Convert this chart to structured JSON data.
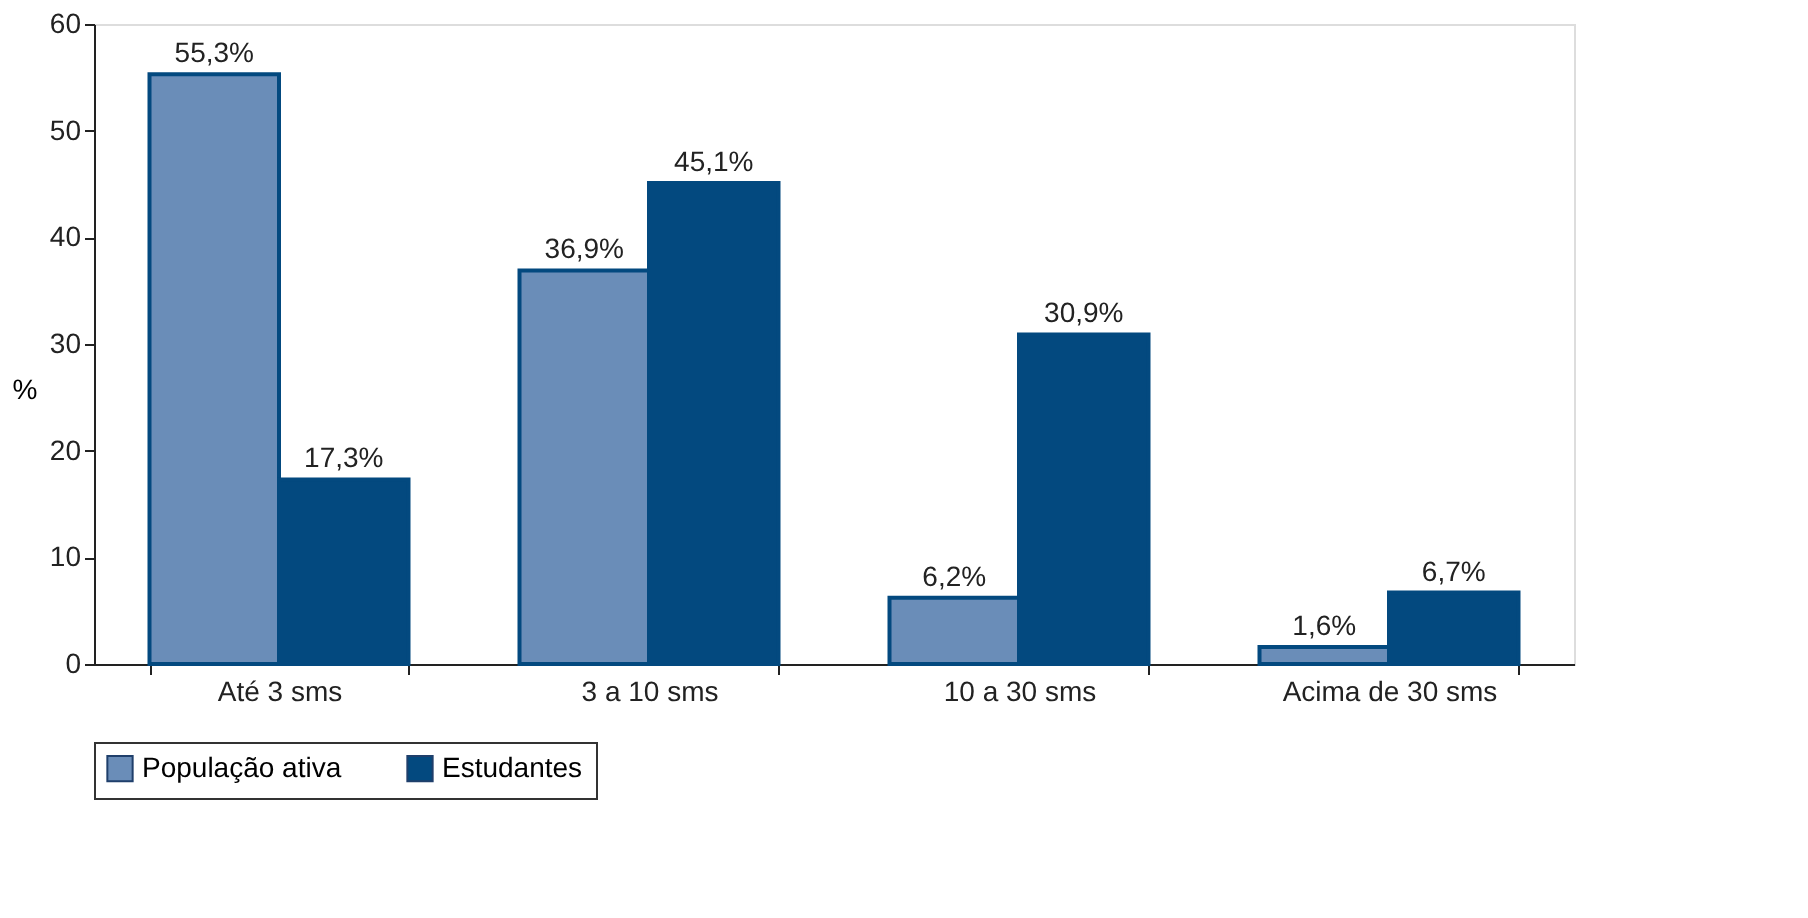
{
  "chart_data": {
    "type": "bar",
    "ylabel": "%",
    "categories": [
      "Até 3 sms",
      "3 a 10 sms",
      "10 a 30 sms",
      "Acima de 30 sms"
    ],
    "series": [
      {
        "name": "População ativa",
        "color": "#6a8db8",
        "values": [
          55.3,
          36.9,
          6.2,
          1.6
        ],
        "value_labels": [
          "55,3%",
          "36,9%",
          "6,2%",
          "1,6%"
        ]
      },
      {
        "name": "Estudantes",
        "color": "#03497f",
        "values": [
          17.3,
          45.1,
          30.9,
          6.7
        ],
        "value_labels": [
          "17,3%",
          "45,1%",
          "30,9%",
          "6,7%"
        ]
      }
    ],
    "ylim": [
      0,
      60
    ],
    "yticks": [
      0,
      10,
      20,
      30,
      40,
      50,
      60
    ],
    "grid": false,
    "legend": "bottom"
  }
}
